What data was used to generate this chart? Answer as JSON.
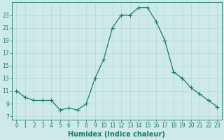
{
  "x": [
    0,
    1,
    2,
    3,
    4,
    5,
    6,
    7,
    8,
    9,
    10,
    11,
    12,
    13,
    14,
    15,
    16,
    17,
    18,
    19,
    20,
    21,
    22,
    23
  ],
  "y": [
    11.0,
    10.0,
    9.5,
    9.5,
    9.5,
    8.0,
    8.3,
    8.0,
    9.0,
    13.0,
    16.0,
    21.0,
    23.0,
    23.0,
    24.2,
    24.2,
    22.0,
    19.0,
    14.0,
    13.0,
    11.5,
    10.5,
    9.5,
    8.5
  ],
  "xlim": [
    -0.5,
    23.5
  ],
  "ylim": [
    6.5,
    25.0
  ],
  "yticks": [
    7,
    9,
    11,
    13,
    15,
    17,
    19,
    21,
    23
  ],
  "xticks": [
    0,
    1,
    2,
    3,
    4,
    5,
    6,
    7,
    8,
    9,
    10,
    11,
    12,
    13,
    14,
    15,
    16,
    17,
    18,
    19,
    20,
    21,
    22,
    23
  ],
  "xlabel": "Humidex (Indice chaleur)",
  "line_color": "#1a7a6e",
  "marker_color": "#1a7a6e",
  "bg_color": "#ceeae8",
  "grid_color": "#b0d4d0",
  "tick_label_color": "#1a7a6e",
  "xlabel_color": "#1a7a6e",
  "axis_color": "#1a7a6e",
  "xlabel_fontsize": 7,
  "tick_fontsize": 5.5,
  "linewidth": 0.9,
  "markersize": 2.0
}
